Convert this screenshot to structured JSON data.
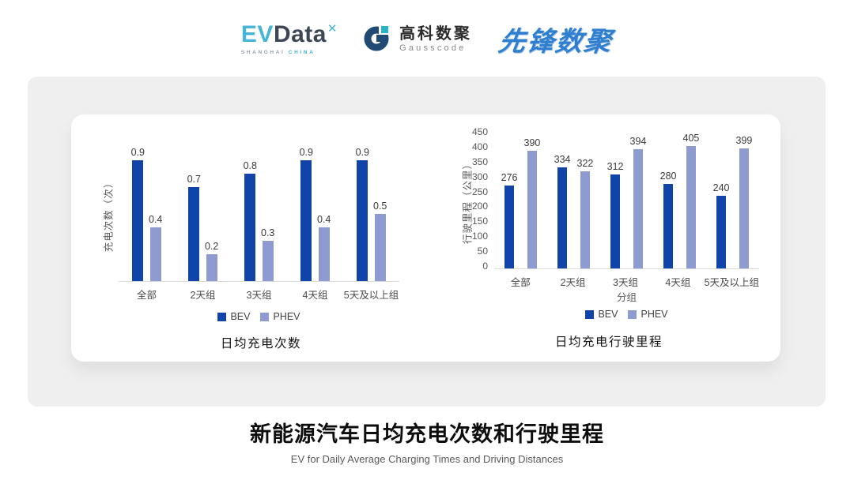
{
  "header": {
    "evdata_logo": {
      "ev": "EV",
      "data": "Data",
      "spark": "✕",
      "sub_left": "SHANGHAI",
      "sub_right": "CHINA"
    },
    "gausscode_logo": {
      "cn": "高科数聚",
      "en": "Gausscode"
    },
    "xianfeng_logo": {
      "text": "先锋数聚"
    }
  },
  "colors": {
    "bev": "#1144a8",
    "phev": "#8e9bd0",
    "evdata_accent": "#45b5d9",
    "evdata_dark": "#3d4756",
    "gausscode_navy": "#1e4a73",
    "gausscode_teal": "#2ab3c6",
    "xianfeng_blue": "#2e7fd0",
    "panel_gray": "#efefef",
    "axis_line": "#d9d9d9",
    "tick_text": "#595959"
  },
  "chart_data": [
    {
      "type": "bar",
      "title": "日均充电次数",
      "ylabel": "充电次数（次）",
      "xlabel": "",
      "categories": [
        "全部",
        "2天组",
        "3天组",
        "4天组",
        "5天及以上组"
      ],
      "series": [
        {
          "name": "BEV",
          "color": "#1144a8",
          "values": [
            0.9,
            0.7,
            0.8,
            0.9,
            0.9
          ]
        },
        {
          "name": "PHEV",
          "color": "#8e9bd0",
          "values": [
            0.4,
            0.2,
            0.3,
            0.4,
            0.5
          ]
        }
      ],
      "ylim": [
        0,
        1.0
      ],
      "yticks": null,
      "grid": false,
      "legend": [
        "BEV",
        "PHEV"
      ],
      "legend_position": "bottom",
      "bar_value_labels": true
    },
    {
      "type": "bar",
      "title": "日均充电行驶里程",
      "ylabel": "行驶里程（公里）",
      "xlabel": "分组",
      "categories": [
        "全部",
        "2天组",
        "3天组",
        "4天组",
        "5天及以上组"
      ],
      "series": [
        {
          "name": "BEV",
          "color": "#1144a8",
          "values": [
            276,
            334,
            312,
            280,
            240
          ]
        },
        {
          "name": "PHEV",
          "color": "#8e9bd0",
          "values": [
            390,
            322,
            394,
            405,
            399
          ]
        }
      ],
      "ylim": [
        0,
        450
      ],
      "yticks": [
        450,
        400,
        350,
        300,
        250,
        200,
        150,
        100,
        50,
        0
      ],
      "grid": false,
      "legend": [
        "BEV",
        "PHEV"
      ],
      "legend_position": "bottom",
      "bar_value_labels": true
    }
  ],
  "footer": {
    "title": "新能源汽车日均充电次数和行驶里程",
    "subtitle": "EV for Daily Average Charging Times and Driving Distances"
  }
}
